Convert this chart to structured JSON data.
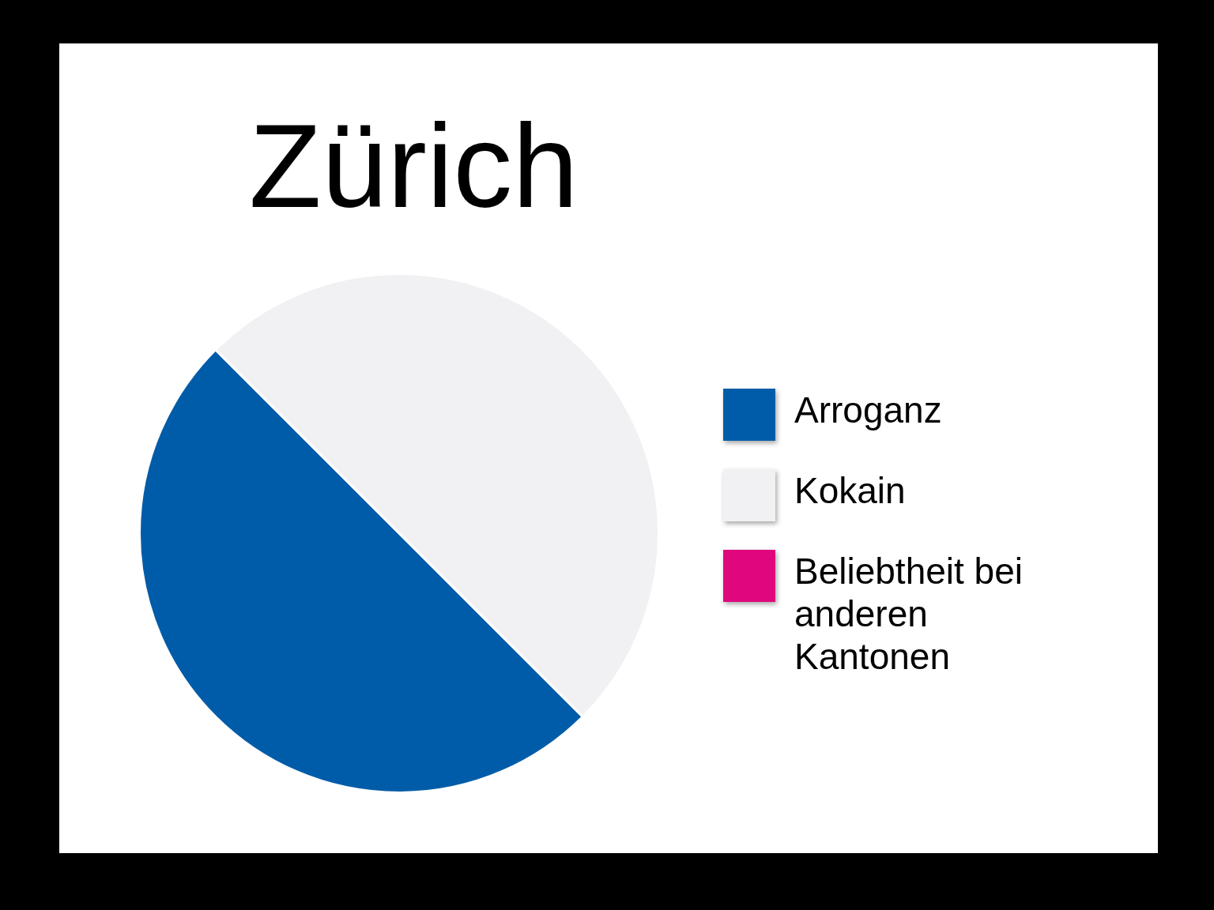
{
  "chart_data": {
    "type": "pie",
    "title": "Zürich",
    "categories": [
      "Arroganz",
      "Kokain",
      "Beliebtheit bei anderen Kantonen"
    ],
    "values": [
      50,
      50,
      0
    ],
    "colors": [
      "#005ca8",
      "#f1f1f3",
      "#e0077d"
    ],
    "legend": "right"
  }
}
